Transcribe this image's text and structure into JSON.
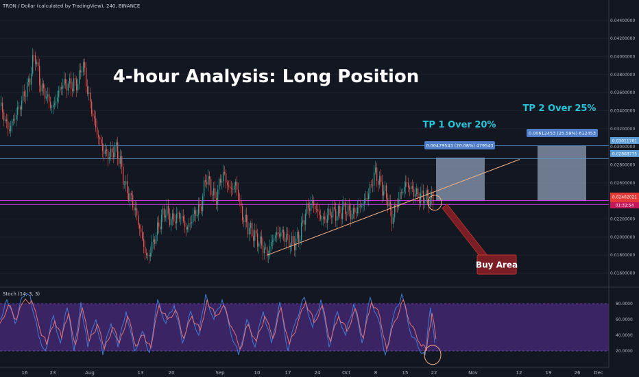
{
  "header": {
    "symbol_line": "TRON / Dollar (calculated by TradingView), 240, BINANCE"
  },
  "annotations": {
    "title": "4-hour Analysis: Long Position",
    "tp1": "TP 1 Over 20%",
    "tp2": "TP 2 Over 25%",
    "buy_area": "Buy Area",
    "box1_label": "0.00479543 (20.08%) 479543",
    "box2_label": "0.00612453 (25.59%) 612453"
  },
  "price_axis": {
    "ticks": [
      "0.04400000",
      "0.04200000",
      "0.04000000",
      "0.03800000",
      "0.03600000",
      "0.03400000",
      "0.03200000",
      "0.03000000",
      "0.02800000",
      "0.02600000",
      "0.02400000",
      "0.02200000",
      "0.02000000",
      "0.01800000",
      "0.01600000"
    ],
    "badge_upper": "0.03011761",
    "badge_lower": "0.02868775",
    "badge_price": "0.02402021",
    "badge_time": "01:32:54"
  },
  "stoch_axis": {
    "ticks": [
      "80.0000",
      "60.0000",
      "40.0000",
      "20.0000"
    ]
  },
  "indicator": {
    "name": "Stoch (14, 3, 3)"
  },
  "date_axis": {
    "labels": [
      "16",
      "23",
      "Aug",
      "13",
      "20",
      "Sep",
      "10",
      "17",
      "24",
      "Oct",
      "8",
      "15",
      "22",
      "Nov",
      "12",
      "19",
      "26",
      "Dec"
    ]
  },
  "colors": {
    "background": "#131722",
    "up": "#26a69a",
    "down": "#ef5350",
    "level_line": "#5b9bd5",
    "support_line": "#e040fb",
    "trend_line": "#f4b183",
    "tp_box": "#8d9cb5",
    "stoch_fill": "#4a2a7a",
    "stoch_k": "#3f7bd6",
    "stoch_d": "#e57373",
    "buy_box": "#7a1d25",
    "title": "#ffffff",
    "tp_text": "#26c6da"
  },
  "chart_data": [
    {
      "type": "candlestick",
      "title": "TRON / Dollar (calculated by TradingView), 240, BINANCE",
      "ylim": [
        0.0155,
        0.0455
      ],
      "y_ticks": [
        0.044,
        0.042,
        0.04,
        0.038,
        0.036,
        0.034,
        0.032,
        0.03,
        0.028,
        0.026,
        0.024,
        0.022,
        0.02,
        0.018,
        0.016
      ],
      "x_labels": [
        "16",
        "23",
        "Aug",
        "13",
        "20",
        "Sep",
        "10",
        "17",
        "24",
        "Oct",
        "8",
        "15",
        "22",
        "Nov",
        "12",
        "19",
        "26",
        "Dec"
      ],
      "close_path": [
        {
          "x": 0,
          "y": 0.0345
        },
        {
          "x": 12,
          "y": 0.0318
        },
        {
          "x": 28,
          "y": 0.0345
        },
        {
          "x": 42,
          "y": 0.0372
        },
        {
          "x": 50,
          "y": 0.0405
        },
        {
          "x": 58,
          "y": 0.0368
        },
        {
          "x": 66,
          "y": 0.0358
        },
        {
          "x": 76,
          "y": 0.0342
        },
        {
          "x": 90,
          "y": 0.037
        },
        {
          "x": 104,
          "y": 0.0368
        },
        {
          "x": 114,
          "y": 0.0372
        },
        {
          "x": 120,
          "y": 0.0395
        },
        {
          "x": 128,
          "y": 0.0358
        },
        {
          "x": 140,
          "y": 0.0318
        },
        {
          "x": 150,
          "y": 0.0295
        },
        {
          "x": 160,
          "y": 0.029
        },
        {
          "x": 168,
          "y": 0.03
        },
        {
          "x": 175,
          "y": 0.0282
        },
        {
          "x": 182,
          "y": 0.0255
        },
        {
          "x": 192,
          "y": 0.024
        },
        {
          "x": 200,
          "y": 0.022
        },
        {
          "x": 206,
          "y": 0.02
        },
        {
          "x": 214,
          "y": 0.0175
        },
        {
          "x": 222,
          "y": 0.0192
        },
        {
          "x": 232,
          "y": 0.0215
        },
        {
          "x": 240,
          "y": 0.023
        },
        {
          "x": 250,
          "y": 0.0218
        },
        {
          "x": 262,
          "y": 0.0225
        },
        {
          "x": 272,
          "y": 0.0208
        },
        {
          "x": 282,
          "y": 0.0225
        },
        {
          "x": 292,
          "y": 0.0232
        },
        {
          "x": 300,
          "y": 0.0268
        },
        {
          "x": 308,
          "y": 0.0252
        },
        {
          "x": 314,
          "y": 0.024
        },
        {
          "x": 320,
          "y": 0.0262
        },
        {
          "x": 326,
          "y": 0.027
        },
        {
          "x": 334,
          "y": 0.0252
        },
        {
          "x": 344,
          "y": 0.0258
        },
        {
          "x": 352,
          "y": 0.0225
        },
        {
          "x": 362,
          "y": 0.021
        },
        {
          "x": 372,
          "y": 0.02
        },
        {
          "x": 380,
          "y": 0.0192
        },
        {
          "x": 390,
          "y": 0.018
        },
        {
          "x": 398,
          "y": 0.02
        },
        {
          "x": 408,
          "y": 0.0205
        },
        {
          "x": 418,
          "y": 0.0198
        },
        {
          "x": 426,
          "y": 0.0192
        },
        {
          "x": 436,
          "y": 0.02
        },
        {
          "x": 446,
          "y": 0.023
        },
        {
          "x": 456,
          "y": 0.0238
        },
        {
          "x": 464,
          "y": 0.0225
        },
        {
          "x": 472,
          "y": 0.0218
        },
        {
          "x": 482,
          "y": 0.0228
        },
        {
          "x": 492,
          "y": 0.0225
        },
        {
          "x": 502,
          "y": 0.0232
        },
        {
          "x": 512,
          "y": 0.0225
        },
        {
          "x": 522,
          "y": 0.0232
        },
        {
          "x": 532,
          "y": 0.024
        },
        {
          "x": 540,
          "y": 0.0255
        },
        {
          "x": 546,
          "y": 0.0272
        },
        {
          "x": 552,
          "y": 0.0262
        },
        {
          "x": 560,
          "y": 0.025
        },
        {
          "x": 566,
          "y": 0.024
        },
        {
          "x": 570,
          "y": 0.0218
        },
        {
          "x": 576,
          "y": 0.0232
        },
        {
          "x": 584,
          "y": 0.0248
        },
        {
          "x": 592,
          "y": 0.026
        },
        {
          "x": 600,
          "y": 0.0252
        },
        {
          "x": 610,
          "y": 0.0245
        },
        {
          "x": 620,
          "y": 0.0244
        },
        {
          "x": 628,
          "y": 0.0242
        },
        {
          "x": 632,
          "y": 0.024
        }
      ],
      "horizontal_levels": [
        {
          "name": "upper-resistance",
          "value": 0.03011761
        },
        {
          "name": "lower-resistance",
          "value": 0.02868775
        },
        {
          "name": "support-upper",
          "value": 0.02405
        },
        {
          "name": "support-lower",
          "value": 0.0236
        }
      ],
      "trend_line": {
        "from": {
          "x": 390,
          "y": 0.018
        },
        "to": {
          "x": 758,
          "y": 0.0286
        }
      },
      "target_boxes": [
        {
          "name": "tp1",
          "x_start": 636,
          "x_end": 707,
          "y_low": 0.024,
          "y_high": 0.0288,
          "label": "0.00479543 (20.08%) 479543"
        },
        {
          "name": "tp2",
          "x_start": 784,
          "x_end": 855,
          "y_low": 0.024,
          "y_high": 0.0301,
          "label": "0.00612453 (25.59%) 612453"
        }
      ]
    },
    {
      "type": "line",
      "title": "Stoch (14, 3, 3)",
      "ylim": [
        0,
        100
      ],
      "y_ticks": [
        80,
        60,
        40,
        20
      ],
      "band": [
        20,
        80
      ],
      "series": [
        {
          "name": "%K",
          "values": [
            {
              "x": 0,
              "y": 60
            },
            {
              "x": 10,
              "y": 85
            },
            {
              "x": 22,
              "y": 55
            },
            {
              "x": 32,
              "y": 88
            },
            {
              "x": 44,
              "y": 90
            },
            {
              "x": 56,
              "y": 40
            },
            {
              "x": 66,
              "y": 20
            },
            {
              "x": 78,
              "y": 65
            },
            {
              "x": 88,
              "y": 30
            },
            {
              "x": 98,
              "y": 75
            },
            {
              "x": 108,
              "y": 20
            },
            {
              "x": 118,
              "y": 82
            },
            {
              "x": 128,
              "y": 25
            },
            {
              "x": 140,
              "y": 60
            },
            {
              "x": 150,
              "y": 15
            },
            {
              "x": 162,
              "y": 55
            },
            {
              "x": 172,
              "y": 25
            },
            {
              "x": 184,
              "y": 70
            },
            {
              "x": 196,
              "y": 20
            },
            {
              "x": 208,
              "y": 45
            },
            {
              "x": 218,
              "y": 18
            },
            {
              "x": 230,
              "y": 85
            },
            {
              "x": 242,
              "y": 55
            },
            {
              "x": 254,
              "y": 78
            },
            {
              "x": 266,
              "y": 30
            },
            {
              "x": 278,
              "y": 70
            },
            {
              "x": 290,
              "y": 40
            },
            {
              "x": 300,
              "y": 92
            },
            {
              "x": 312,
              "y": 60
            },
            {
              "x": 324,
              "y": 85
            },
            {
              "x": 336,
              "y": 45
            },
            {
              "x": 348,
              "y": 15
            },
            {
              "x": 360,
              "y": 60
            },
            {
              "x": 372,
              "y": 25
            },
            {
              "x": 384,
              "y": 70
            },
            {
              "x": 396,
              "y": 30
            },
            {
              "x": 408,
              "y": 82
            },
            {
              "x": 420,
              "y": 20
            },
            {
              "x": 432,
              "y": 60
            },
            {
              "x": 444,
              "y": 88
            },
            {
              "x": 456,
              "y": 50
            },
            {
              "x": 468,
              "y": 85
            },
            {
              "x": 480,
              "y": 25
            },
            {
              "x": 492,
              "y": 70
            },
            {
              "x": 504,
              "y": 40
            },
            {
              "x": 516,
              "y": 80
            },
            {
              "x": 528,
              "y": 30
            },
            {
              "x": 540,
              "y": 88
            },
            {
              "x": 552,
              "y": 60
            },
            {
              "x": 562,
              "y": 15
            },
            {
              "x": 574,
              "y": 65
            },
            {
              "x": 586,
              "y": 92
            },
            {
              "x": 598,
              "y": 45
            },
            {
              "x": 610,
              "y": 25
            },
            {
              "x": 620,
              "y": 15
            },
            {
              "x": 628,
              "y": 75
            },
            {
              "x": 634,
              "y": 30
            }
          ]
        },
        {
          "name": "%D",
          "values": [
            {
              "x": 0,
              "y": 55
            },
            {
              "x": 12,
              "y": 78
            },
            {
              "x": 24,
              "y": 60
            },
            {
              "x": 34,
              "y": 82
            },
            {
              "x": 46,
              "y": 84
            },
            {
              "x": 58,
              "y": 48
            },
            {
              "x": 68,
              "y": 28
            },
            {
              "x": 80,
              "y": 58
            },
            {
              "x": 90,
              "y": 36
            },
            {
              "x": 100,
              "y": 68
            },
            {
              "x": 110,
              "y": 28
            },
            {
              "x": 120,
              "y": 75
            },
            {
              "x": 130,
              "y": 32
            },
            {
              "x": 142,
              "y": 54
            },
            {
              "x": 152,
              "y": 22
            },
            {
              "x": 164,
              "y": 50
            },
            {
              "x": 174,
              "y": 30
            },
            {
              "x": 186,
              "y": 64
            },
            {
              "x": 198,
              "y": 26
            },
            {
              "x": 210,
              "y": 40
            },
            {
              "x": 220,
              "y": 24
            },
            {
              "x": 232,
              "y": 78
            },
            {
              "x": 244,
              "y": 60
            },
            {
              "x": 256,
              "y": 72
            },
            {
              "x": 268,
              "y": 36
            },
            {
              "x": 280,
              "y": 64
            },
            {
              "x": 292,
              "y": 46
            },
            {
              "x": 302,
              "y": 85
            },
            {
              "x": 314,
              "y": 64
            },
            {
              "x": 326,
              "y": 78
            },
            {
              "x": 338,
              "y": 50
            },
            {
              "x": 350,
              "y": 22
            },
            {
              "x": 362,
              "y": 54
            },
            {
              "x": 374,
              "y": 32
            },
            {
              "x": 386,
              "y": 64
            },
            {
              "x": 398,
              "y": 36
            },
            {
              "x": 410,
              "y": 75
            },
            {
              "x": 422,
              "y": 28
            },
            {
              "x": 434,
              "y": 55
            },
            {
              "x": 446,
              "y": 82
            },
            {
              "x": 458,
              "y": 56
            },
            {
              "x": 470,
              "y": 78
            },
            {
              "x": 482,
              "y": 32
            },
            {
              "x": 494,
              "y": 64
            },
            {
              "x": 506,
              "y": 45
            },
            {
              "x": 518,
              "y": 74
            },
            {
              "x": 530,
              "y": 36
            },
            {
              "x": 542,
              "y": 82
            },
            {
              "x": 554,
              "y": 64
            },
            {
              "x": 564,
              "y": 22
            },
            {
              "x": 576,
              "y": 58
            },
            {
              "x": 588,
              "y": 85
            },
            {
              "x": 600,
              "y": 52
            },
            {
              "x": 612,
              "y": 30
            },
            {
              "x": 622,
              "y": 20
            },
            {
              "x": 630,
              "y": 68
            },
            {
              "x": 636,
              "y": 35
            }
          ]
        }
      ]
    }
  ]
}
